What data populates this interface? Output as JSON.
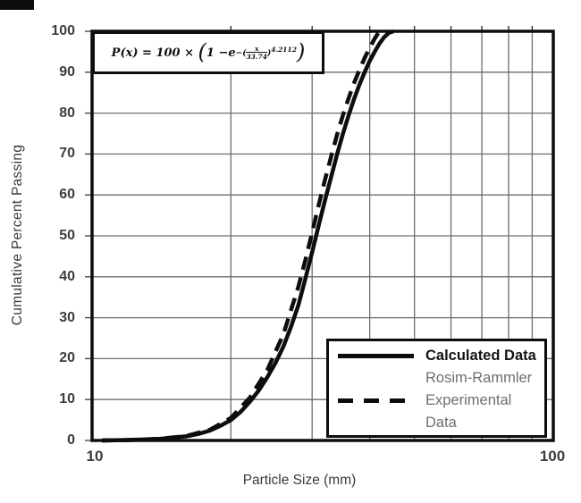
{
  "figure": {
    "background": "#ffffff",
    "line_color": "#0d0d0d",
    "grid_color": "#6e6e6e",
    "text_color": "#3a3a3a"
  },
  "chart_data": {
    "type": "line",
    "title": "",
    "xlabel": "Particle Size (mm)",
    "ylabel": "Cumulative Percent Passing",
    "x_scale": "log",
    "xlim": [
      10,
      100
    ],
    "ylim": [
      0,
      100
    ],
    "grid": true,
    "xticks": [
      "10",
      "100"
    ],
    "yticks": [
      0,
      10,
      20,
      30,
      40,
      50,
      60,
      70,
      80,
      90,
      100
    ],
    "x_gridlines": [
      20,
      30,
      40,
      50,
      60,
      70,
      80,
      90
    ],
    "legend_position": "bottom-right",
    "annotation": "P(x) = 100 × (1 − e^−((x/33.74)^4.2112))",
    "series": [
      {
        "name": "Calculated Data Rosim-Rammler",
        "style": "solid",
        "color": "#0d0d0d",
        "points": [
          [
            10.5,
            0
          ],
          [
            12,
            0.1
          ],
          [
            14,
            0.4
          ],
          [
            16,
            1
          ],
          [
            17,
            1.6
          ],
          [
            18,
            2.4
          ],
          [
            19,
            3.6
          ],
          [
            20,
            5
          ],
          [
            21,
            7
          ],
          [
            22,
            9.5
          ],
          [
            23,
            12.3
          ],
          [
            24,
            15.5
          ],
          [
            25,
            19
          ],
          [
            26,
            23
          ],
          [
            27,
            27.8
          ],
          [
            28,
            33
          ],
          [
            29,
            39.5
          ],
          [
            30,
            46
          ],
          [
            31,
            52.5
          ],
          [
            32,
            58.8
          ],
          [
            33,
            64.5
          ],
          [
            34,
            70
          ],
          [
            35,
            75
          ],
          [
            36,
            79.5
          ],
          [
            37,
            83.5
          ],
          [
            38,
            87
          ],
          [
            39,
            90
          ],
          [
            40,
            92.8
          ],
          [
            41,
            95
          ],
          [
            42,
            97
          ],
          [
            43,
            98.6
          ],
          [
            44,
            99.6
          ],
          [
            45,
            100
          ]
        ]
      },
      {
        "name": "Experimental Data",
        "style": "dashed",
        "color": "#0d0d0d",
        "points": [
          [
            10.5,
            0
          ],
          [
            12,
            0.1
          ],
          [
            14,
            0.4
          ],
          [
            16,
            1.1
          ],
          [
            18,
            2.6
          ],
          [
            20,
            5.5
          ],
          [
            22,
            10.5
          ],
          [
            24,
            17.3
          ],
          [
            26,
            26
          ],
          [
            28,
            37.5
          ],
          [
            29,
            44
          ],
          [
            30,
            50.8
          ],
          [
            31,
            57.5
          ],
          [
            32,
            63.8
          ],
          [
            33,
            69.5
          ],
          [
            34,
            74.8
          ],
          [
            35,
            79.5
          ],
          [
            36,
            83.7
          ],
          [
            37,
            87.4
          ],
          [
            38,
            90.6
          ],
          [
            39,
            93.5
          ],
          [
            40,
            96
          ],
          [
            41,
            98.2
          ],
          [
            41.8,
            99.7
          ],
          [
            42,
            100
          ]
        ]
      }
    ]
  },
  "equation": {
    "lead": "P(x) = 100 ×",
    "open_big": "(",
    "one_minus": "1 − ",
    "base": "e",
    "exp_open": "−(",
    "frac_num": "x",
    "frac_den": "33.74",
    "exp_close": ")",
    "power": "4.2112",
    "close_big": ")"
  },
  "legend": {
    "entries": [
      {
        "label": "Calculated Data",
        "sublabel": "Rosim-Rammler",
        "line": "solid"
      },
      {
        "label": "Experimental",
        "sublabel": "Data",
        "line": "dashed"
      }
    ]
  }
}
